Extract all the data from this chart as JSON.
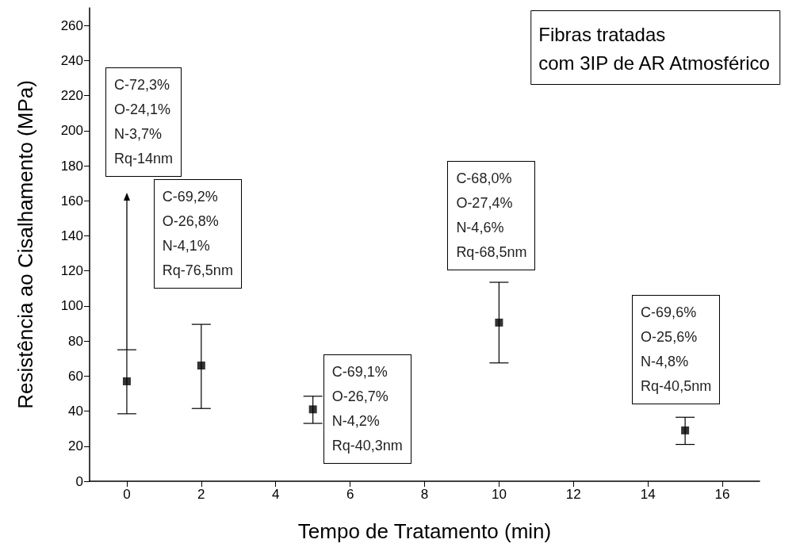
{
  "chart_data": {
    "type": "scatter",
    "title": "Fibras tratadas\ncom 3IP de AR Atmosférico",
    "xlabel": "Tempo de Tratamento (min)",
    "ylabel": "Resistência ao Cisalhamento (MPa)",
    "x": [
      0,
      2,
      5,
      10,
      15
    ],
    "values": [
      57,
      66,
      41,
      90.5,
      29
    ],
    "errors": [
      [
        38.5,
        75
      ],
      [
        41.5,
        89.5
      ],
      [
        33,
        48.5
      ],
      [
        67.5,
        113.5
      ],
      [
        21,
        36.5
      ]
    ],
    "color": "#000000",
    "marker": "square",
    "grid": false,
    "xlim": [
      -1,
      17
    ],
    "xticks": [
      0,
      2,
      4,
      6,
      8,
      10,
      12,
      14,
      16
    ],
    "ylim": [
      0,
      270
    ],
    "yticks": [
      0,
      20,
      40,
      60,
      80,
      100,
      120,
      140,
      160,
      180,
      200,
      220,
      240,
      260
    ],
    "annotations": [
      "C-72,3%\nO-24,1%\nN-3,7%\nRq-14nm",
      "C-69,2%\nO-26,8%\nN-4,1%\nRq-76,5nm",
      "C-69,1%\nO-26,7%\nN-4,2%\nRq-40,3nm",
      "C-68,0%\nO-27,4%\nN-4,6%\nRq-68,5nm",
      "C-69,6%\nO-25,6%\nN-4,8%\nRq-40,5nm"
    ]
  }
}
